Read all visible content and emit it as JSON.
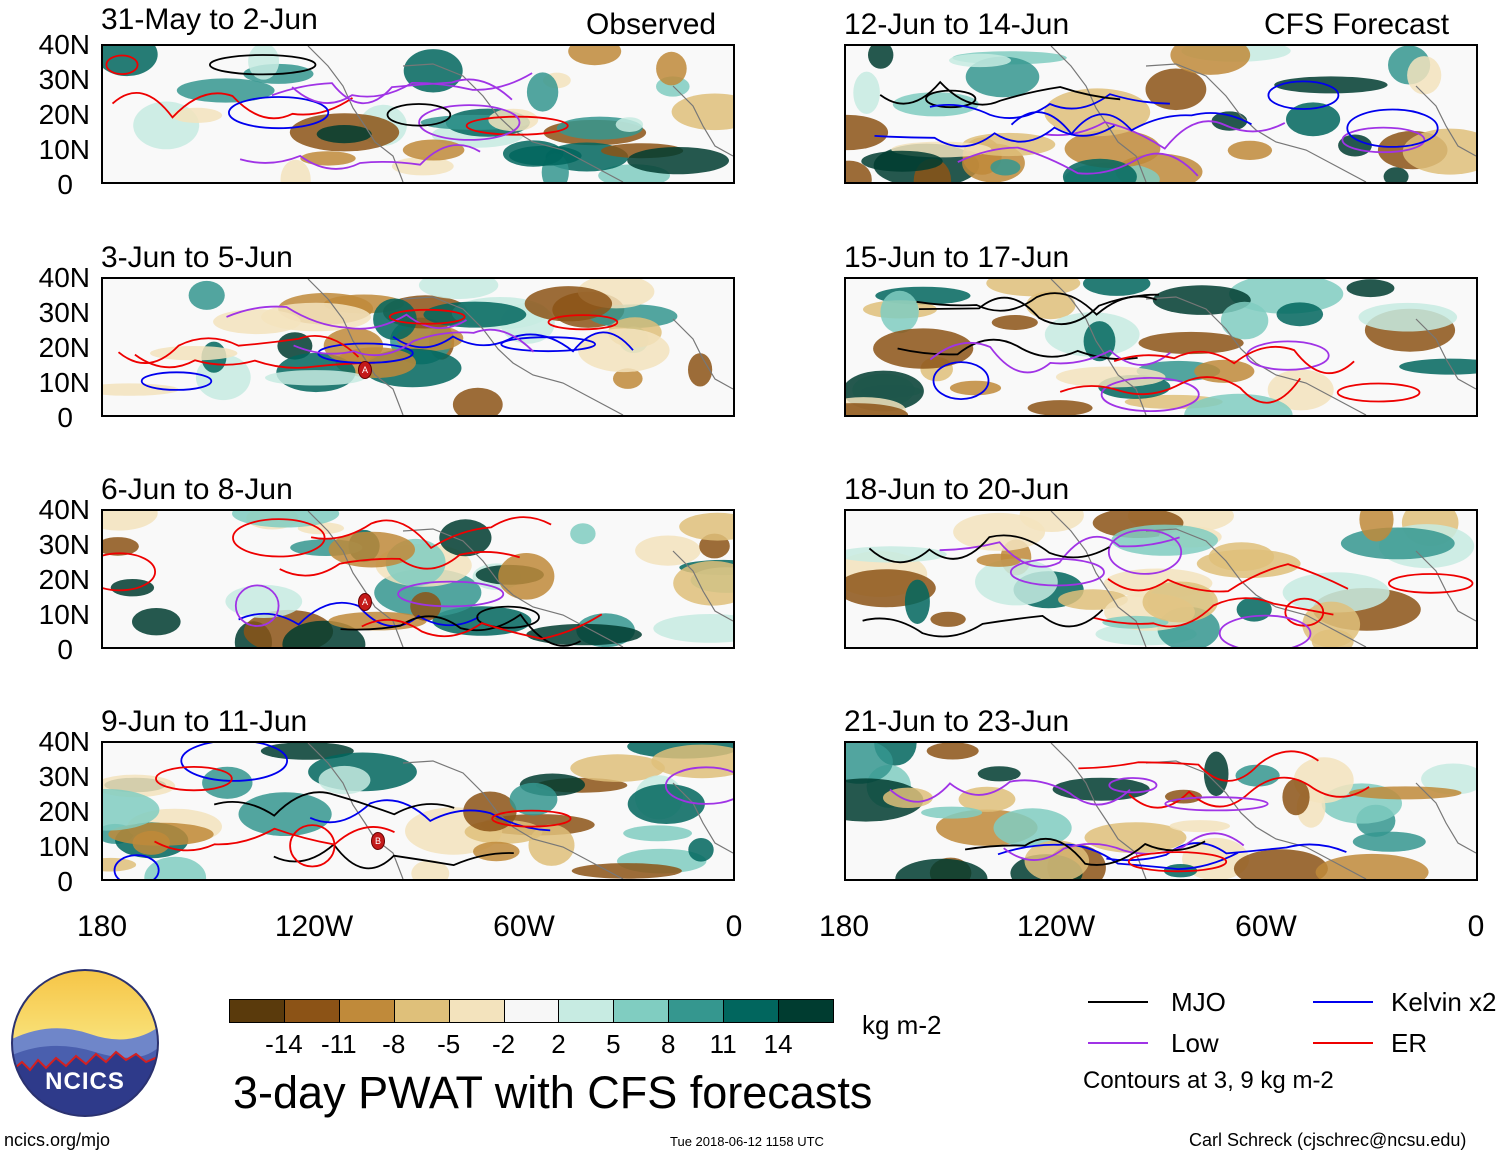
{
  "headers": {
    "left": "Observed",
    "right": "CFS Forecast"
  },
  "lat_labels": [
    "40N",
    "30N",
    "20N",
    "10N",
    "0"
  ],
  "lon_labels": [
    "180",
    "120W",
    "60W",
    "0"
  ],
  "panels": [
    {
      "title": "31-May to 2-Jun",
      "group": "Observed"
    },
    {
      "title": "3-Jun to 5-Jun",
      "group": "Observed"
    },
    {
      "title": "6-Jun to 8-Jun",
      "group": "Observed"
    },
    {
      "title": "9-Jun to 11-Jun",
      "group": "Observed"
    },
    {
      "title": "12-Jun to 14-Jun",
      "group": "CFS Forecast"
    },
    {
      "title": "15-Jun to 17-Jun",
      "group": "CFS Forecast"
    },
    {
      "title": "18-Jun to 20-Jun",
      "group": "CFS Forecast"
    },
    {
      "title": "21-Jun to 23-Jun",
      "group": "CFS Forecast"
    }
  ],
  "storm_markers": [
    "A",
    "A",
    "B"
  ],
  "colorbar": {
    "colors": [
      "#5a3a0c",
      "#8c5316",
      "#c08a3a",
      "#dfc07a",
      "#f3e3bd",
      "#f7f7f7",
      "#c7ebe2",
      "#80cdc1",
      "#35978f",
      "#01665e",
      "#003c30"
    ],
    "ticks": [
      "-14",
      "-11",
      "-8",
      "-5",
      "-2",
      "2",
      "5",
      "8",
      "11",
      "14"
    ],
    "units": "kg m-2"
  },
  "title": "3-day PWAT with CFS forecasts",
  "logo": {
    "text": "NCICS"
  },
  "legend": {
    "items": [
      {
        "label": "MJO",
        "color": "#000000"
      },
      {
        "label": "Kelvin x2",
        "color": "#0000ee"
      },
      {
        "label": "Low",
        "color": "#a033e6"
      },
      {
        "label": "ER",
        "color": "#ee0000"
      }
    ],
    "note": "Contours at 3, 9 kg m-2"
  },
  "footer": {
    "url": "ncics.org/mjo",
    "timestamp": "Tue 2018-06-12 1158 UTC",
    "credit": "Carl Schreck (cjschrec@ncsu.edu)"
  }
}
